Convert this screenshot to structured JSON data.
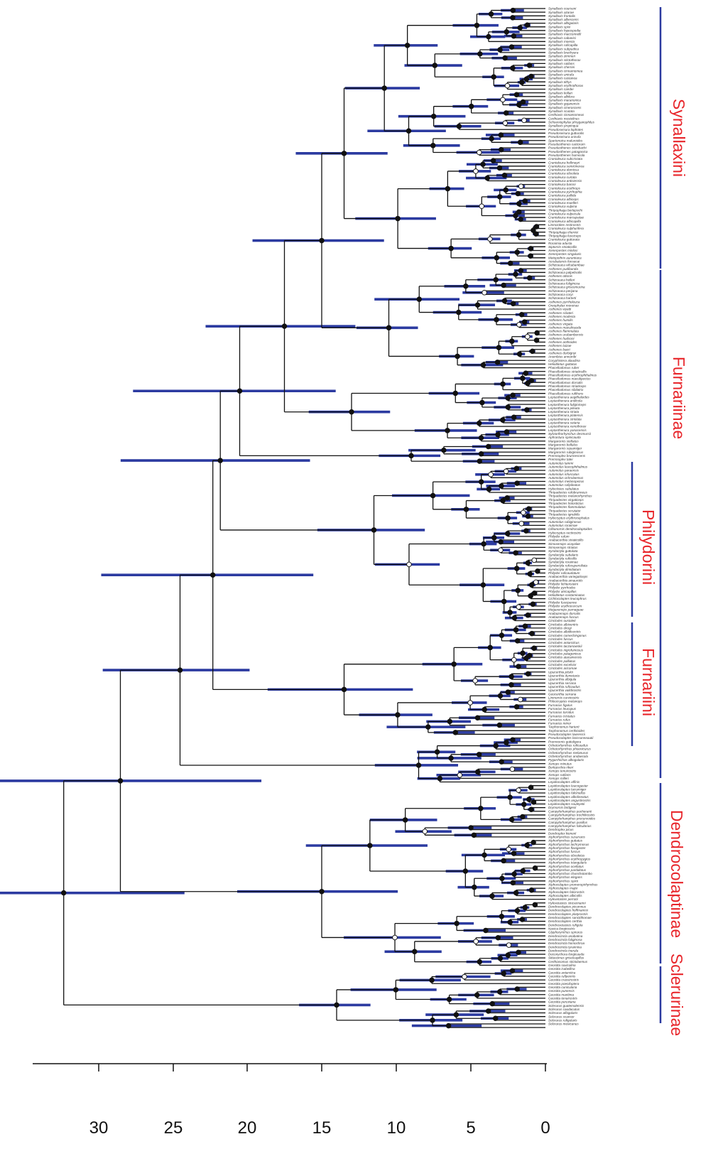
{
  "figure": {
    "colors": {
      "branch": "#111111",
      "confidence_bar": "#2b3aa0",
      "node_solid": "#111111",
      "node_open": "#ffffff",
      "clade_bar": "#2b3aa0",
      "clade_label": "#e8262b"
    },
    "axis": {
      "ticks": [
        {
          "label": "30",
          "value": 30
        },
        {
          "label": "25",
          "value": 25
        },
        {
          "label": "20",
          "value": 20
        },
        {
          "label": "15",
          "value": 15
        },
        {
          "label": "10",
          "value": 10
        },
        {
          "label": "5",
          "value": 5
        },
        {
          "label": "0",
          "value": 0
        }
      ],
      "range": [
        34,
        0
      ]
    },
    "clades": [
      {
        "name": "Synallaxini",
        "id": "synallaxini"
      },
      {
        "name": "Furnariinae",
        "id": "furnariinae"
      },
      {
        "name": "Philydorini",
        "id": "philydorini"
      },
      {
        "name": "Furnariini",
        "id": "furnariini"
      },
      {
        "name": "Dendrocolaptinae",
        "id": "dendrocolaptinae"
      },
      {
        "name": "Sclerurinae",
        "id": "sclerurinae"
      }
    ],
    "taxa": [
      "Synallaxis courseni",
      "Synallaxis azarae",
      "Synallaxis frontalis",
      "Synallaxis albescens",
      "Synallaxis albigularis",
      "Synallaxis spixi",
      "Synallaxis hypospodia",
      "Synallaxis macconnelli",
      "Synallaxis cabanisi",
      "Synallaxis moesta",
      "Synallaxis ruficapilla",
      "Synallaxis subpudica",
      "Synallaxis brachyura",
      "Synallaxis zimmeri",
      "Synallaxis stictothorax",
      "Synallaxis rutilans",
      "Synallaxis cherriei",
      "Synallaxis cinnamomea",
      "Synallaxis unirufa",
      "Synallaxis castanea",
      "Synallaxis tithys",
      "Synallaxis erythrothorax",
      "Synallaxis candei",
      "Synallaxis kollari",
      "Synallaxis albilora",
      "Synallaxis maranonica",
      "Synallaxis gujanensis",
      "Synallaxis cinerascens",
      "Synallaxis scutata",
      "Certhiaxis cinnamomeus",
      "Certhiaxis mustelinus",
      "Schoeniophylax phryganophilus",
      "Synallaxis propinqua",
      "Pseudoseisura lophotes",
      "Pseudoseisura gutturalis",
      "Pseudoseisura unirufa",
      "Spartonoica maluroides",
      "Pseudasthenes cactorum",
      "Pseudasthenes steinbachi",
      "Pseudasthenes patagonica",
      "Pseudasthenes humicola",
      "Cranioleuca subcristata",
      "Cranioleuca hellmayri",
      "Cranioleuca semicinerea",
      "Cranioleuca demissa",
      "Cranioleuca obsoleta",
      "Cranioleuca curtata",
      "Cranioleuca antisiensis",
      "Cranioleuca baroni",
      "Cranioleuca erythrops",
      "Cranioleuca pyrrhophia",
      "Cranioleuca pallida",
      "Cranioleuca albiceps",
      "Cranioleuca muelleri",
      "Cranioleuca vulpina",
      "Thripophaga berlepschi",
      "Cranioleuca vulpecula",
      "Cranioleuca marcapatae",
      "Cranioleuca albicapilla",
      "Limnoctites rectirostris",
      "Cranioleuca sulphurifera",
      "Thripophaga cherriei",
      "Thripophaga fusciceps",
      "Cranioleuca gutturata",
      "Roraimia adusta",
      "Siptornis striaticollis",
      "Xenerpestes minlosi",
      "Xenerpestes singularis",
      "Metopothrix aurantiaca",
      "Acrobatornis fonsecai",
      "Schizoeaca vilcabambae",
      "Asthenes pudibunda",
      "Schizoeaca palpebralis",
      "Asthenes ottonis",
      "Schizoeaca helleri",
      "Schizoeaca fuliginosa",
      "Schizoeaca griseomurina",
      "Schizoeaca perijana",
      "Schizoeaca coryi",
      "Schizoeaca harterti",
      "Asthenes pyrrholeuca",
      "Oreophylax moreirae",
      "Asthenes wyatti",
      "Asthenes sclateri",
      "Asthenes modesta",
      "Asthenes humilis",
      "Asthenes virgata",
      "Asthenes maculicauda",
      "Asthenes flammulata",
      "Asthenes urubambensis",
      "Asthenes hudsoni",
      "Asthenes anthoides",
      "Asthenes luizae",
      "Asthenes baeri",
      "Asthenes dorbignyi",
      "Anumbius annumbi",
      "Coryphistera alaudina",
      "Heliobletus guttatus",
      "Phacellodomus ruber",
      "Phacellodomus striaticollis",
      "Phacellodomus erythrophthalmus",
      "Phacellodomus maculipectus",
      "Phacellodomus dorsalis",
      "Phacellodomus striaticeps",
      "Phacellodomus sibilatrix",
      "Phacellodomus rufifrons",
      "Leptasthenura aegithaloides",
      "Leptasthenura andicola",
      "Leptasthenura fuliginiceps",
      "Leptasthenura pileata",
      "Leptasthenura striata",
      "Leptasthenura platensis",
      "Leptasthenura striolata",
      "Leptasthenura setaria",
      "Leptasthenura xenothorax",
      "Leptasthenura yanacensis",
      "Sylviorthorhynchus desmursii",
      "Aphrastura spinicauda",
      "Margarornis stellatus",
      "Margarornis bellulus",
      "Margarornis squamiger",
      "Margarornis rubiginosus",
      "Premnoplex brunnescens",
      "Premnoplex tatei",
      "Automolus lammi",
      "Automolus leucophthalmus",
      "Automolus paraensis",
      "Automolus infuscatus",
      "Automolus ochrolaemus",
      "Automolus melanopezus",
      "Automolus rufipileatus",
      "Hyloctistes subulatus",
      "Thripadectes rufobrunneus",
      "Thripadectes melanorhynchus",
      "Thripadectes virgaticeps",
      "Thripadectes holostictus",
      "Thripadectes flammulatus",
      "Thripadectes scrutator",
      "Thripadectes ignobilis",
      "Hylocryptus erythrocephalus",
      "Automolus rubiginosus",
      "Automolus roraimae",
      "Clibanornis dendrocolaptoides",
      "Hylocryptus rectirostris",
      "Philydor rufum",
      "Anabacerthia striaticollis",
      "Simoxenops ucayalae",
      "Simoxenops striatus",
      "Syndactyla guttulata",
      "Syndactyla subalaris",
      "Syndactyla ruficollis",
      "Syndactyla roraimae",
      "Syndactyla rufosuperciliata",
      "Syndactyla dimidiatum",
      "Philydor ruficaudatum",
      "Anabacerthia variegaticeps",
      "Anabacerthia amaurotis",
      "Philydor lichtensteini",
      "Philydor pyrrhodes",
      "Philydor atricapillus",
      "Heliobletus contaminatus",
      "Cichlocolaptes leucophrus",
      "Philydor fuscipenne",
      "Philydor erythrocercum",
      "Megaxenops parnaguae",
      "Anabazenops dorsalis",
      "Anabazenops fuscus",
      "Cinclodes oustaleti",
      "Cinclodes albiventris",
      "Cinclodes olrogi",
      "Cinclodes albidiventris",
      "Cinclodes comechingonus",
      "Cinclodes fuscus",
      "Cinclodes antarcticus",
      "Cinclodes taczanowskii",
      "Cinclodes nigrofumosus",
      "Cinclodes patagonicus",
      "Cinclodes atacamensis",
      "Cinclodes palliatus",
      "Cinclodes excelsior",
      "Cinclodes aricomae",
      "Upucerthia jelskii",
      "Upucerthia dumetaria",
      "Upucerthia albigula",
      "Upucerthia serrana",
      "Upucerthia ruficaudus",
      "Upucerthia validirostris",
      "Geocerthia serrana",
      "Limnornis curvirostris",
      "Phleocryptes melanops",
      "Furnarius figulus",
      "Furnarius leucopus",
      "Furnarius torridus",
      "Furnarius cristatus",
      "Furnarius rufus",
      "Furnarius minor",
      "Tarphonomus harterti",
      "Tarphonomus certhioides",
      "Pseudocolaptes lawrencii",
      "Pseudocolaptes boissonneautii",
      "Premnornis guttuligera",
      "Ochetorhynchus ruficaudus",
      "Ochetorhynchus phoenicurus",
      "Ochetorhynchus melanurus",
      "Ochetorhynchus andaecola",
      "Pygarrhichas albogularis",
      "Xenops minutus",
      "Berlepschia rikeri",
      "Xenops tenuirostris",
      "Xenops rutilans",
      "Xenops milleri",
      "Lepidocolaptes affinis",
      "Lepidocolaptes leucogaster",
      "Lepidocolaptes lacrymiger",
      "Lepidocolaptes falcinellus",
      "Lepidocolaptes albolineatus",
      "Lepidocolaptes angustirostris",
      "Lepidocolaptes souleyetii",
      "Drymornis bridgesii",
      "Campylorhamphus pucheranii",
      "Campylorhamphus trochilirostris",
      "Campylorhamphus procurvoides",
      "Campylorhamphus pusillus",
      "Campylorhamphus falcularius",
      "Dendroplex picus",
      "Dendroplex kienerii",
      "Xiphorhynchus susurrans",
      "Xiphorhynchus guttatus",
      "Xiphorhynchus lachrymosus",
      "Xiphorhynchus flavigaster",
      "Xiphorhynchus fuscus",
      "Xiphorhynchus obsoletus",
      "Xiphorhynchus erythropygius",
      "Xiphorhynchus triangularis",
      "Xiphorhynchus ocellatus",
      "Xiphorhynchus pardalotus",
      "Xiphorhynchus chunchotambo",
      "Xiphorhynchus elegans",
      "Xiphorhynchus spixii",
      "Xiphocolaptes promeropirhynchus",
      "Xiphocolaptes major",
      "Xiphocolaptes falcirostris",
      "Xiphocolaptes albicollis",
      "Hylexetastes perrotii",
      "Hylexetastes stresemanni",
      "Dendrocolaptes picumnus",
      "Dendrocolaptes hoffmannsi",
      "Dendrocolaptes platyrostris",
      "Dendrocolaptes sanctithomae",
      "Dendrocolaptes certhia",
      "Dendrexetastes rufigula",
      "Nasica longirostris",
      "Glyphorynchus spirurus",
      "Dendrocincla anabatina",
      "Dendrocincla fuliginosa",
      "Dendrocincla homochroa",
      "Dendrocincla tyrannina",
      "Dendrocincla merula",
      "Deconychura longicauda",
      "Sittasomus griseicapillus",
      "Certhiasomus stictolaemus",
      "Geositta saxicolina",
      "Geositta isabellina",
      "Geositta antarctica",
      "Geositta rufipennis",
      "Geositta crassirostris",
      "Geositta poeciloptera",
      "Geositta cunicularia",
      "Geositta punensis",
      "Geositta maritima",
      "Geositta tenuirostris",
      "Geositta peruviana",
      "Sclerurus guatemalensis",
      "Sclerurus caudacutus",
      "Sclerurus albigularis",
      "Sclerurus scansor",
      "Sclerurus rufigularis",
      "Sclerurus mexicanus"
    ]
  }
}
